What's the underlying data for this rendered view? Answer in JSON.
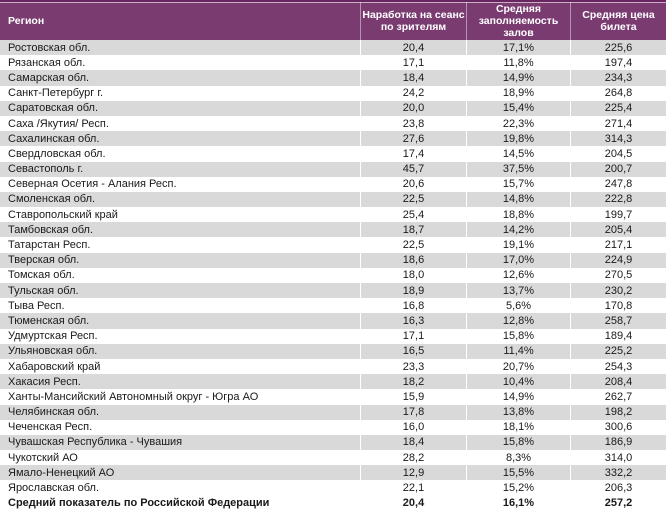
{
  "colors": {
    "header_bg": "#7A3B71",
    "header_text": "#FFFFFF",
    "top_border_dark": "#69255F",
    "top_border_light": "#C9AEC6",
    "row_stripe": "#D9D9D9",
    "row_white": "#FFFFFF",
    "body_text": "#1A1A1A"
  },
  "table": {
    "columns": [
      {
        "label": "Регион"
      },
      {
        "label": "Наработка на сеанс по зрителям"
      },
      {
        "label": "Средняя заполняемость залов"
      },
      {
        "label": "Средняя цена билета"
      }
    ],
    "rows": [
      [
        "Ростовская обл.",
        "20,4",
        "17,1%",
        "225,6"
      ],
      [
        "Рязанская обл.",
        "17,1",
        "11,8%",
        "197,4"
      ],
      [
        "Самарская обл.",
        "18,4",
        "14,9%",
        "234,3"
      ],
      [
        "Санкт-Петербург г.",
        "24,2",
        "18,9%",
        "264,8"
      ],
      [
        "Саратовская обл.",
        "20,0",
        "15,4%",
        "225,4"
      ],
      [
        "Саха /Якутия/ Респ.",
        "23,8",
        "22,3%",
        "271,4"
      ],
      [
        "Сахалинская обл.",
        "27,6",
        "19,8%",
        "314,3"
      ],
      [
        "Свердловская обл.",
        "17,4",
        "14,5%",
        "204,5"
      ],
      [
        "Севастополь г.",
        "45,7",
        "37,5%",
        "200,7"
      ],
      [
        "Северная Осетия - Алания Респ.",
        "20,6",
        "15,7%",
        "247,8"
      ],
      [
        "Смоленская обл.",
        "22,5",
        "14,8%",
        "222,8"
      ],
      [
        "Ставропольский край",
        "25,4",
        "18,8%",
        "199,7"
      ],
      [
        "Тамбовская обл.",
        "18,7",
        "14,2%",
        "205,4"
      ],
      [
        "Татарстан Респ.",
        "22,5",
        "19,1%",
        "217,1"
      ],
      [
        "Тверская обл.",
        "18,6",
        "17,0%",
        "224,9"
      ],
      [
        "Томская обл.",
        "18,0",
        "12,6%",
        "270,5"
      ],
      [
        "Тульская обл.",
        "18,9",
        "13,7%",
        "230,2"
      ],
      [
        "Тыва Респ.",
        "16,8",
        "5,6%",
        "170,8"
      ],
      [
        "Тюменская обл.",
        "16,3",
        "12,8%",
        "258,7"
      ],
      [
        "Удмуртская Респ.",
        "17,1",
        "15,8%",
        "189,4"
      ],
      [
        "Ульяновская обл.",
        "16,5",
        "11,4%",
        "225,2"
      ],
      [
        "Хабаровский край",
        "23,3",
        "20,7%",
        "254,3"
      ],
      [
        "Хакасия Респ.",
        "18,2",
        "10,4%",
        "208,4"
      ],
      [
        "Ханты-Мансийский Автономный округ - Югра АО",
        "15,9",
        "14,9%",
        "262,7"
      ],
      [
        "Челябинская обл.",
        "17,8",
        "13,8%",
        "198,2"
      ],
      [
        "Чеченская Респ.",
        "16,0",
        "18,1%",
        "300,6"
      ],
      [
        "Чувашская Республика - Чувашия",
        "18,4",
        "15,8%",
        "186,9"
      ],
      [
        "Чукотский АО",
        "28,2",
        "8,3%",
        "314,0"
      ],
      [
        "Ямало-Ненецкий АО",
        "12,9",
        "15,5%",
        "332,2"
      ],
      [
        "Ярославская обл.",
        "22,1",
        "15,2%",
        "206,3"
      ]
    ],
    "total_row": [
      "Средний показатель по Российской Федерации",
      "20,4",
      "16,1%",
      "257,2"
    ]
  }
}
